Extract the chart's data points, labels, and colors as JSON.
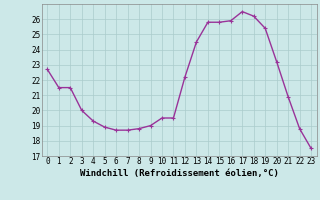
{
  "x": [
    0,
    1,
    2,
    3,
    4,
    5,
    6,
    7,
    8,
    9,
    10,
    11,
    12,
    13,
    14,
    15,
    16,
    17,
    18,
    19,
    20,
    21,
    22,
    23
  ],
  "y": [
    22.7,
    21.5,
    21.5,
    20.0,
    19.3,
    18.9,
    18.7,
    18.7,
    18.8,
    19.0,
    19.5,
    19.5,
    22.2,
    24.5,
    25.8,
    25.8,
    25.9,
    26.5,
    26.2,
    25.4,
    23.2,
    20.9,
    18.8,
    17.5
  ],
  "line_color": "#993399",
  "marker": "+",
  "bg_color": "#cce8e8",
  "grid_color": "#aacccc",
  "xlabel": "Windchill (Refroidissement éolien,°C)",
  "ylim": [
    17,
    27
  ],
  "yticks": [
    17,
    18,
    19,
    20,
    21,
    22,
    23,
    24,
    25,
    26
  ],
  "xticks": [
    0,
    1,
    2,
    3,
    4,
    5,
    6,
    7,
    8,
    9,
    10,
    11,
    12,
    13,
    14,
    15,
    16,
    17,
    18,
    19,
    20,
    21,
    22,
    23
  ],
  "tick_label_fontsize": 5.5,
  "xlabel_fontsize": 6.5,
  "line_width": 1.0,
  "marker_size": 3,
  "marker_edge_width": 0.8
}
